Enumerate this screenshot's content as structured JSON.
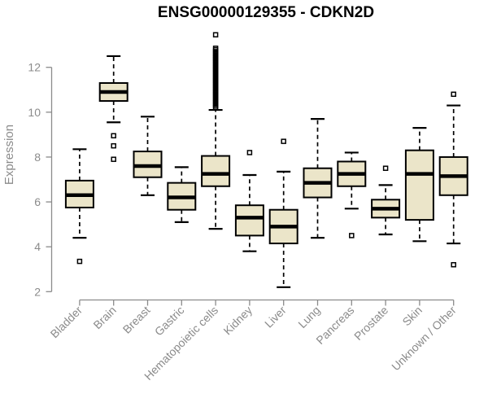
{
  "chart_data": {
    "type": "boxplot",
    "title": "ENSG00000129355 - CDKN2D",
    "ylabel": "Expression",
    "xlabel": "",
    "ylim": [
      2,
      13.6
    ],
    "yticks": [
      2,
      4,
      6,
      8,
      10,
      12
    ],
    "grid": false,
    "legend": "none",
    "categories": [
      "Bladder",
      "Brain",
      "Breast",
      "Gastric",
      "Hematopoietic cells",
      "Kidney",
      "Liver",
      "Lung",
      "Pancreas",
      "Prostate",
      "Skin",
      "Unknown / Other"
    ],
    "series": [
      {
        "category": "Bladder",
        "whisker_low": 4.4,
        "q1": 5.75,
        "median": 6.3,
        "q3": 6.95,
        "whisker_high": 8.35,
        "outliers": [
          3.35
        ]
      },
      {
        "category": "Brain",
        "whisker_low": 9.55,
        "q1": 10.5,
        "median": 10.9,
        "q3": 11.3,
        "whisker_high": 12.5,
        "outliers": [
          8.95,
          8.5,
          7.9
        ]
      },
      {
        "category": "Breast",
        "whisker_low": 6.3,
        "q1": 7.1,
        "median": 7.6,
        "q3": 8.25,
        "whisker_high": 9.8,
        "outliers": []
      },
      {
        "category": "Gastric",
        "whisker_low": 5.1,
        "q1": 5.65,
        "median": 6.2,
        "q3": 6.85,
        "whisker_high": 7.55,
        "outliers": []
      },
      {
        "category": "Hematopoietic cells",
        "whisker_low": 4.8,
        "q1": 6.7,
        "median": 7.25,
        "q3": 8.05,
        "whisker_high": 10.1,
        "outliers": [
          10.2,
          10.27,
          10.34,
          10.41,
          10.48,
          10.55,
          10.62,
          10.7,
          10.77,
          10.84,
          10.91,
          10.98,
          11.05,
          11.12,
          11.2,
          11.27,
          11.34,
          11.41,
          11.48,
          11.55,
          11.62,
          11.7,
          11.77,
          11.84,
          11.91,
          11.98,
          12.05,
          12.12,
          12.2,
          12.27,
          12.34,
          12.41,
          12.48,
          12.55,
          12.62,
          12.7,
          12.78,
          12.85,
          13.45
        ]
      },
      {
        "category": "Kidney",
        "whisker_low": 3.8,
        "q1": 4.5,
        "median": 5.3,
        "q3": 5.85,
        "whisker_high": 7.2,
        "outliers": [
          8.2
        ]
      },
      {
        "category": "Liver",
        "whisker_low": 2.2,
        "q1": 4.15,
        "median": 4.9,
        "q3": 5.65,
        "whisker_high": 7.35,
        "outliers": [
          8.7
        ]
      },
      {
        "category": "Lung",
        "whisker_low": 4.4,
        "q1": 6.2,
        "median": 6.85,
        "q3": 7.5,
        "whisker_high": 9.7,
        "outliers": []
      },
      {
        "category": "Pancreas",
        "whisker_low": 5.7,
        "q1": 6.7,
        "median": 7.25,
        "q3": 7.8,
        "whisker_high": 8.2,
        "outliers": [
          4.5
        ]
      },
      {
        "category": "Prostate",
        "whisker_low": 4.55,
        "q1": 5.3,
        "median": 5.7,
        "q3": 6.1,
        "whisker_high": 6.75,
        "outliers": [
          7.5
        ]
      },
      {
        "category": "Skin",
        "whisker_low": 4.25,
        "q1": 5.2,
        "median": 7.25,
        "q3": 8.3,
        "whisker_high": 9.3,
        "outliers": []
      },
      {
        "category": "Unknown / Other",
        "whisker_low": 4.15,
        "q1": 6.3,
        "median": 7.15,
        "q3": 8.0,
        "whisker_high": 10.3,
        "outliers": [
          10.8,
          3.2
        ]
      }
    ],
    "colors": {
      "box_fill": "#EBE5C9",
      "box_border": "#000000",
      "median": "#000000",
      "whisker": "#000000",
      "outlier": "#000000",
      "axis": "#8b8b8b",
      "title": "#000000",
      "background": "#ffffff"
    }
  }
}
